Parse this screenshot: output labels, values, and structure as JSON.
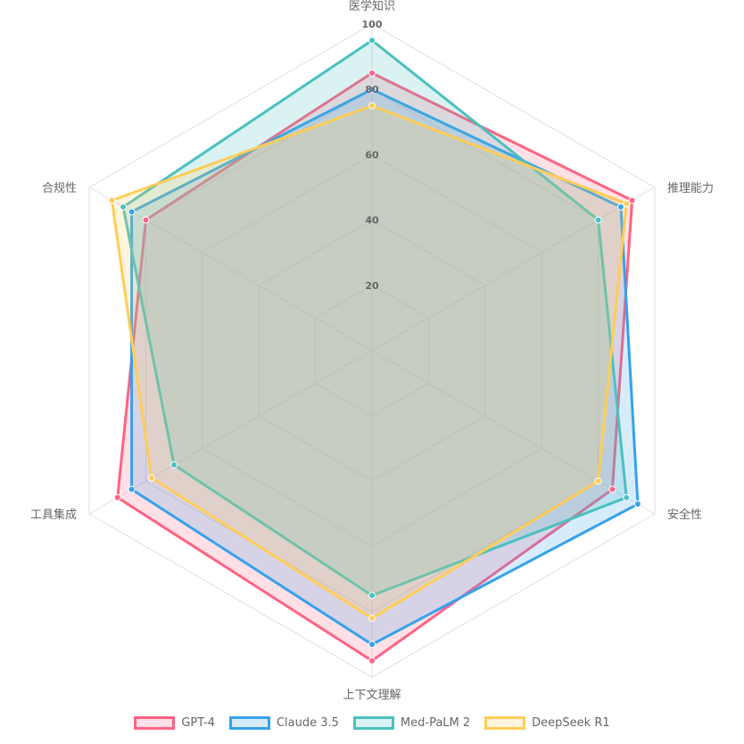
{
  "chart_data": {
    "type": "radar",
    "title": "",
    "axes": [
      "医学知识",
      "推理能力",
      "安全性",
      "上下文理解",
      "工具集成",
      "合规性"
    ],
    "rlim": [
      0,
      100
    ],
    "ticks": [
      "20",
      "40",
      "60",
      "80",
      "100"
    ],
    "tick_values": [
      20,
      40,
      60,
      80,
      100
    ],
    "grid": true,
    "legend_position": "bottom",
    "series": [
      {
        "name": "GPT-4",
        "values": [
          85,
          92,
          85,
          95,
          90,
          80
        ],
        "color": "#ff6384",
        "fill": "rgba(255,99,132,0.2)"
      },
      {
        "name": "Claude 3.5",
        "values": [
          80,
          88,
          94,
          90,
          85,
          85
        ],
        "color": "#36a2eb",
        "fill": "rgba(54,162,235,0.2)"
      },
      {
        "name": "Med-PaLM 2",
        "values": [
          95,
          80,
          90,
          75,
          70,
          88
        ],
        "color": "#4bc0c0",
        "fill": "rgba(75,192,192,0.2)"
      },
      {
        "name": "DeepSeek R1",
        "values": [
          75,
          90,
          80,
          82,
          78,
          92
        ],
        "color": "#ffcd56",
        "fill": "rgba(255,205,86,0.2)"
      }
    ]
  }
}
